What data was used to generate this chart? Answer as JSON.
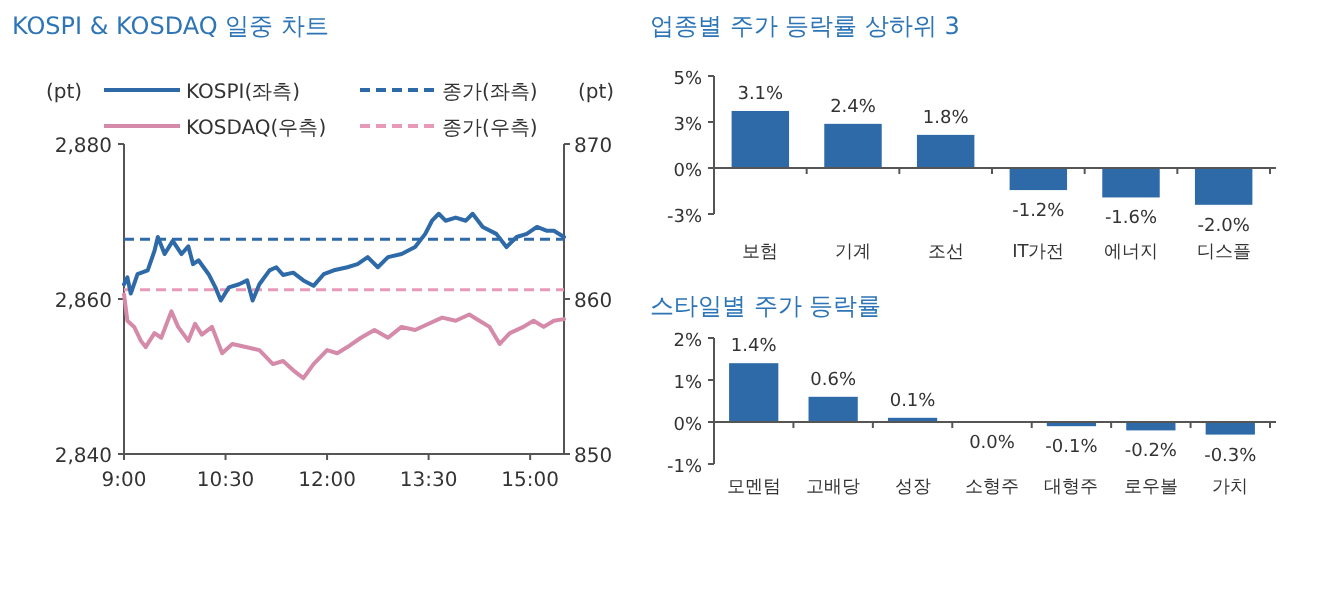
{
  "chart_data": [
    {
      "type": "line",
      "title": "KOSPI & KOSDAQ 일중 차트",
      "ylabel": "(pt)",
      "y2label": "(pt)",
      "xlim": [
        9,
        15.5
      ],
      "xticks": [
        {
          "value": 9,
          "label": "9:00"
        },
        {
          "value": 10.5,
          "label": "10:30"
        },
        {
          "value": 12,
          "label": "12:00"
        },
        {
          "value": 13.5,
          "label": "13:30"
        },
        {
          "value": 15,
          "label": "15:00"
        }
      ],
      "ylim": [
        2840,
        2880
      ],
      "yticks": [
        {
          "value": 2840,
          "label": "2,840"
        },
        {
          "value": 2860,
          "label": "2,860"
        },
        {
          "value": 2880,
          "label": "2,880"
        }
      ],
      "y2lim": [
        850,
        870
      ],
      "y2ticks": [
        850,
        860,
        870
      ],
      "legend": "top",
      "grid": false,
      "line_style": "solid",
      "marker": "none",
      "series": [
        {
          "name": "KOSPI(좌측)",
          "color": "#2e6aa8",
          "x": [
            9.0,
            9.05,
            9.1,
            9.2,
            9.35,
            9.45,
            9.5,
            9.6,
            9.72,
            9.85,
            9.95,
            10.02,
            10.1,
            10.25,
            10.35,
            10.43,
            10.55,
            10.7,
            10.82,
            10.9,
            11.0,
            11.15,
            11.25,
            11.35,
            11.5,
            11.65,
            11.8,
            11.95,
            12.1,
            12.3,
            12.45,
            12.6,
            12.75,
            12.9,
            13.1,
            13.3,
            13.45,
            13.55,
            13.65,
            13.75,
            13.9,
            14.05,
            14.15,
            14.3,
            14.5,
            14.65,
            14.8,
            14.95,
            15.1,
            15.25,
            15.35,
            15.5
          ],
          "values": [
            2861.9,
            2862.8,
            2860.7,
            2863.2,
            2863.7,
            2866.2,
            2868,
            2865.8,
            2867.5,
            2865.8,
            2866.8,
            2864.5,
            2865,
            2863.2,
            2861.5,
            2859.8,
            2861.5,
            2861.9,
            2862.4,
            2859.8,
            2861.9,
            2863.7,
            2864.1,
            2863.1,
            2863.4,
            2862.4,
            2861.7,
            2863.2,
            2863.7,
            2864.1,
            2864.5,
            2865.4,
            2864.1,
            2865.4,
            2865.8,
            2866.7,
            2868.4,
            2870.1,
            2871,
            2870.1,
            2870.5,
            2870.1,
            2871,
            2869.3,
            2868.4,
            2866.7,
            2868,
            2868.4,
            2869.3,
            2868.8,
            2868.8,
            2868
          ]
        },
        {
          "name": "KOSDAQ(우측)",
          "color": "#d48aa8",
          "axis": "y2",
          "x": [
            9.0,
            9.05,
            9.15,
            9.25,
            9.32,
            9.45,
            9.55,
            9.7,
            9.8,
            9.95,
            10.05,
            10.15,
            10.3,
            10.45,
            10.6,
            10.8,
            11.0,
            11.2,
            11.35,
            11.5,
            11.65,
            11.8,
            12.0,
            12.15,
            12.3,
            12.5,
            12.7,
            12.9,
            13.1,
            13.3,
            13.5,
            13.7,
            13.9,
            14.1,
            14.25,
            14.4,
            14.55,
            14.7,
            14.9,
            15.05,
            15.2,
            15.35,
            15.5
          ],
          "values": [
            860.3,
            858.6,
            858.2,
            857.3,
            856.9,
            857.8,
            857.5,
            859.2,
            858.2,
            857.3,
            858.4,
            857.7,
            858.2,
            856.5,
            857.1,
            856.9,
            856.7,
            855.8,
            856,
            855.4,
            854.9,
            855.8,
            856.7,
            856.5,
            856.9,
            857.5,
            858,
            857.5,
            858.2,
            858,
            858.4,
            858.8,
            858.6,
            859,
            858.6,
            858.2,
            857.1,
            857.8,
            858.2,
            858.6,
            858.2,
            858.6,
            858.7
          ]
        }
      ],
      "ref_lines": [
        {
          "axis": "y",
          "value": 2867.7,
          "label": "종가(좌측)",
          "color": "#2e6aa8",
          "line_style": "dashed"
        },
        {
          "axis": "y2",
          "value": 860.6,
          "label": "종가(우측)",
          "color": "#e69ab8",
          "line_style": "dashed"
        }
      ]
    },
    {
      "type": "bar",
      "title": "업종별 주가 등락률 상하위 3",
      "categories": [
        "보험",
        "기계",
        "조선",
        "IT가전",
        "에너지",
        "디스플"
      ],
      "values": [
        3.1,
        2.4,
        1.8,
        -1.2,
        -1.6,
        -2.0
      ],
      "color": "#2e6aa8",
      "ylim": [
        -2.5,
        5
      ],
      "yticks": [
        {
          "value": -2.5,
          "label": "-3%"
        },
        {
          "value": 0,
          "label": "0%"
        },
        {
          "value": 2.5,
          "label": "3%"
        },
        {
          "value": 5,
          "label": "5%"
        }
      ],
      "value_labels": [
        "3.1%",
        "2.4%",
        "1.8%",
        "-1.2%",
        "-1.6%",
        "-2.0%"
      ]
    },
    {
      "type": "bar",
      "title": "스타일별 주가 등락률",
      "categories": [
        "모멘텀",
        "고배당",
        "성장",
        "소형주",
        "대형주",
        "로우볼",
        "가치"
      ],
      "values": [
        1.4,
        0.6,
        0.1,
        0.0,
        -0.1,
        -0.2,
        -0.3
      ],
      "color": "#2e6aa8",
      "ylim": [
        -1,
        2
      ],
      "yticks": [
        {
          "value": -1,
          "label": "-1%"
        },
        {
          "value": 0,
          "label": "0%"
        },
        {
          "value": 1,
          "label": "1%"
        },
        {
          "value": 2,
          "label": "2%"
        }
      ],
      "value_labels": [
        "1.4%",
        "0.6%",
        "0.1%",
        "0.0%",
        "-0.1%",
        "-0.2%",
        "-0.3%"
      ]
    }
  ]
}
